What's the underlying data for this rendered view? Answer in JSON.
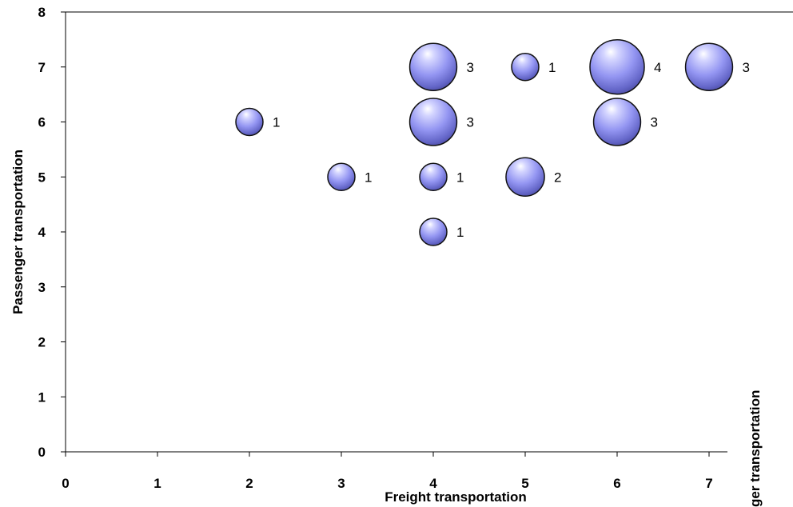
{
  "chart_data": {
    "type": "bubble",
    "title": "",
    "xlabel": "Freight transportation",
    "ylabel": "Passenger transportation",
    "secondary_axis_label_clipped": "ger transportation",
    "xlim": [
      0,
      7.2
    ],
    "ylim": [
      0,
      8
    ],
    "x_ticks": [
      "0",
      "1",
      "2",
      "3",
      "4",
      "5",
      "6",
      "7"
    ],
    "y_ticks": [
      "0",
      "1",
      "2",
      "3",
      "4",
      "5",
      "6",
      "7",
      "8"
    ],
    "grid": false,
    "legend": "none",
    "bubble_color": "#8c8ef0",
    "points": [
      {
        "x": 2,
        "y": 6,
        "size": 1
      },
      {
        "x": 3,
        "y": 5,
        "size": 1
      },
      {
        "x": 4,
        "y": 7,
        "size": 3
      },
      {
        "x": 4,
        "y": 6,
        "size": 3
      },
      {
        "x": 4,
        "y": 5,
        "size": 1
      },
      {
        "x": 4,
        "y": 4,
        "size": 1
      },
      {
        "x": 5,
        "y": 7,
        "size": 1
      },
      {
        "x": 5,
        "y": 5,
        "size": 2
      },
      {
        "x": 6,
        "y": 7,
        "size": 4
      },
      {
        "x": 6,
        "y": 6,
        "size": 3
      },
      {
        "x": 7,
        "y": 7,
        "size": 3
      }
    ]
  }
}
